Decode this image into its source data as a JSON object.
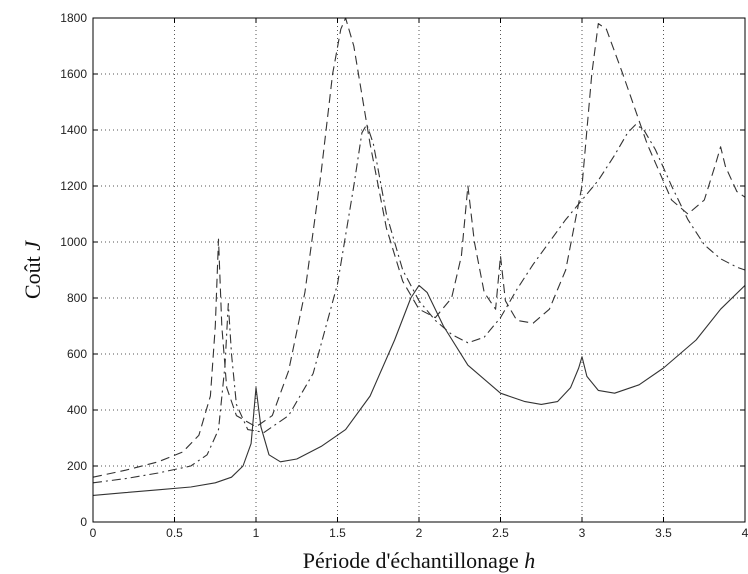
{
  "chart_data": {
    "type": "line",
    "xlabel": "Période d'échantillonage",
    "xlabel_var": "h",
    "ylabel": "Coût",
    "ylabel_var": "J",
    "xlim": [
      0,
      4
    ],
    "ylim": [
      0,
      1800
    ],
    "xticks": [
      0,
      0.5,
      1,
      1.5,
      2,
      2.5,
      3,
      3.5,
      4
    ],
    "xtick_labels": [
      "0",
      "0.5",
      "1",
      "1.5",
      "2",
      "2.5",
      "3",
      "3.5",
      "4"
    ],
    "yticks": [
      0,
      200,
      400,
      600,
      800,
      1000,
      1200,
      1400,
      1600,
      1800
    ],
    "ytick_labels": [
      "0",
      "200",
      "400",
      "600",
      "800",
      "1000",
      "1200",
      "1400",
      "1600",
      "1800"
    ],
    "grid": true,
    "series": [
      {
        "style": "solid",
        "x": [
          0,
          0.2,
          0.4,
          0.6,
          0.75,
          0.85,
          0.92,
          0.97,
          1.0,
          1.03,
          1.08,
          1.15,
          1.25,
          1.4,
          1.55,
          1.7,
          1.85,
          1.95,
          2.0,
          2.05,
          2.15,
          2.3,
          2.5,
          2.65,
          2.75,
          2.85,
          2.93,
          2.98,
          3.0,
          3.03,
          3.1,
          3.2,
          3.35,
          3.5,
          3.7,
          3.85,
          4.0
        ],
        "y": [
          95,
          105,
          115,
          125,
          140,
          160,
          200,
          280,
          480,
          340,
          240,
          215,
          225,
          270,
          330,
          450,
          650,
          800,
          845,
          820,
          700,
          560,
          460,
          430,
          420,
          430,
          480,
          550,
          590,
          520,
          470,
          460,
          490,
          550,
          650,
          760,
          845
        ]
      },
      {
        "style": "dashed",
        "x": [
          0,
          0.2,
          0.4,
          0.55,
          0.65,
          0.72,
          0.75,
          0.77,
          0.79,
          0.82,
          0.88,
          1.0,
          1.1,
          1.2,
          1.3,
          1.4,
          1.47,
          1.52,
          1.55,
          1.6,
          1.7,
          1.8,
          1.9,
          2.0,
          2.1,
          2.2,
          2.26,
          2.3,
          2.34,
          2.4,
          2.47,
          2.5,
          2.53,
          2.6,
          2.7,
          2.8,
          2.9,
          3.0,
          3.06,
          3.1,
          3.15,
          3.25,
          3.4,
          3.55,
          3.65,
          3.75,
          3.82,
          3.85,
          3.88,
          3.95,
          4.0
        ],
        "y": [
          160,
          185,
          215,
          250,
          310,
          450,
          700,
          1010,
          700,
          480,
          380,
          340,
          380,
          540,
          820,
          1250,
          1600,
          1760,
          1800,
          1700,
          1350,
          1050,
          860,
          760,
          730,
          800,
          950,
          1200,
          1000,
          820,
          760,
          950,
          790,
          720,
          710,
          760,
          900,
          1200,
          1600,
          1780,
          1760,
          1600,
          1350,
          1150,
          1100,
          1150,
          1280,
          1340,
          1270,
          1180,
          1160
        ]
      },
      {
        "style": "dashdot",
        "x": [
          0,
          0.2,
          0.4,
          0.6,
          0.7,
          0.77,
          0.81,
          0.83,
          0.85,
          0.88,
          0.95,
          1.05,
          1.2,
          1.35,
          1.5,
          1.6,
          1.65,
          1.68,
          1.72,
          1.8,
          1.9,
          2.0,
          2.1,
          2.2,
          2.3,
          2.4,
          2.5,
          2.6,
          2.7,
          2.8,
          2.9,
          3.0,
          3.1,
          3.2,
          3.28,
          3.33,
          3.38,
          3.45,
          3.55,
          3.65,
          3.75,
          3.85,
          3.95,
          4.0
        ],
        "y": [
          140,
          155,
          175,
          200,
          240,
          330,
          560,
          780,
          600,
          420,
          330,
          320,
          380,
          530,
          850,
          1200,
          1390,
          1420,
          1350,
          1100,
          900,
          790,
          720,
          670,
          640,
          660,
          730,
          830,
          920,
          1000,
          1080,
          1150,
          1220,
          1310,
          1390,
          1420,
          1400,
          1330,
          1200,
          1080,
          990,
          940,
          910,
          900
        ]
      }
    ]
  }
}
